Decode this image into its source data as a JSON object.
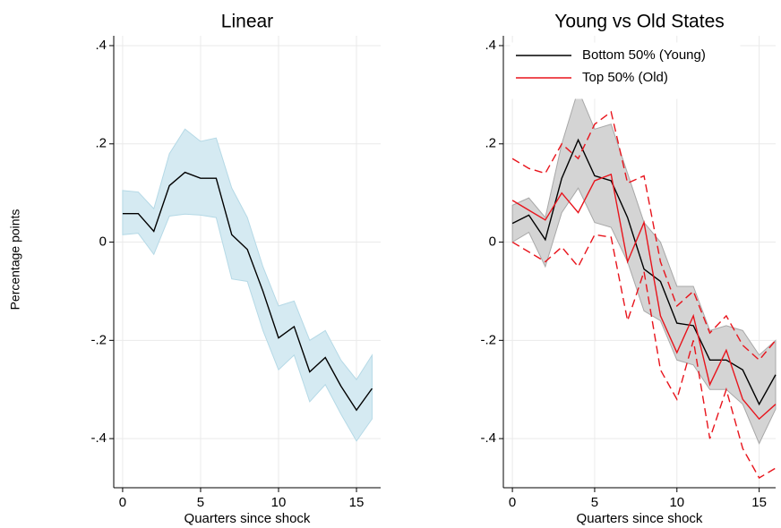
{
  "ylabel": "Percentage points",
  "chart_data": [
    {
      "type": "line",
      "title": "Linear",
      "xlabel": "Quarters since shock",
      "x": [
        0,
        1,
        2,
        3,
        4,
        5,
        6,
        7,
        8,
        9,
        10,
        11,
        12,
        13,
        14,
        15,
        16
      ],
      "xlim": [
        -0.57,
        16.55
      ],
      "ylim": [
        -0.5,
        0.42
      ],
      "xticks": [
        0,
        5,
        10,
        15
      ],
      "yticks": [
        {
          "value": 0.4,
          "label": ".4"
        },
        {
          "value": 0.2,
          "label": ".2"
        },
        0,
        {
          "value": -0.2,
          "label": "-.2"
        },
        {
          "value": -0.4,
          "label": "-.4"
        }
      ],
      "grid": true,
      "series": [
        {
          "color": "#000000",
          "band_color": "#d5eaf2",
          "band_edge": "#b5d9e6",
          "band_style": "fill",
          "values": [
            0.058,
            0.058,
            0.022,
            0.115,
            0.142,
            0.13,
            0.13,
            0.015,
            -0.015,
            -0.1,
            -0.195,
            -0.172,
            -0.264,
            -0.235,
            -0.293,
            -0.342,
            -0.298
          ],
          "upper": [
            0.105,
            0.102,
            0.068,
            0.18,
            0.23,
            0.205,
            0.212,
            0.11,
            0.05,
            -0.05,
            -0.13,
            -0.12,
            -0.2,
            -0.18,
            -0.24,
            -0.28,
            -0.23
          ],
          "lower": [
            0.015,
            0.018,
            -0.025,
            0.053,
            0.057,
            0.055,
            0.05,
            -0.075,
            -0.08,
            -0.18,
            -0.26,
            -0.23,
            -0.325,
            -0.29,
            -0.35,
            -0.405,
            -0.36
          ]
        }
      ]
    },
    {
      "type": "line",
      "title": "Young vs Old States",
      "xlabel": "Quarters since shock",
      "x": [
        0,
        1,
        2,
        3,
        4,
        5,
        6,
        7,
        8,
        9,
        10,
        11,
        12,
        13,
        14,
        15,
        16
      ],
      "xlim": [
        -0.55,
        16
      ],
      "ylim": [
        -0.5,
        0.42
      ],
      "xticks": [
        0,
        5,
        10,
        15
      ],
      "yticks": [
        {
          "value": 0.4,
          "label": ".4"
        },
        {
          "value": 0.2,
          "label": ".2"
        },
        0,
        {
          "value": -0.2,
          "label": "-.2"
        },
        {
          "value": -0.4,
          "label": "-.4"
        }
      ],
      "grid": true,
      "legend": "upper left",
      "series": [
        {
          "name": "Bottom 50% (Young)",
          "color": "#000000",
          "band_color": "#d4d4d4",
          "band_edge": "#a8a8a8",
          "band_style": "fill",
          "values": [
            0.038,
            0.055,
            0.005,
            0.13,
            0.208,
            0.135,
            0.125,
            0.05,
            -0.055,
            -0.08,
            -0.165,
            -0.17,
            -0.24,
            -0.24,
            -0.26,
            -0.33,
            -0.27
          ],
          "upper": [
            0.075,
            0.09,
            0.05,
            0.2,
            0.31,
            0.23,
            0.24,
            0.14,
            0.04,
            0.0,
            -0.09,
            -0.09,
            -0.18,
            -0.17,
            -0.18,
            -0.23,
            -0.2
          ],
          "lower": [
            0.0,
            0.02,
            -0.05,
            0.06,
            0.11,
            0.04,
            0.03,
            -0.04,
            -0.14,
            -0.16,
            -0.24,
            -0.25,
            -0.3,
            -0.3,
            -0.33,
            -0.41,
            -0.34
          ]
        },
        {
          "name": "Top 50% (Old)",
          "color": "#e8141c",
          "band_style": "dashed",
          "values": [
            0.085,
            0.065,
            0.045,
            0.1,
            0.06,
            0.125,
            0.138,
            -0.04,
            0.04,
            -0.15,
            -0.225,
            -0.15,
            -0.29,
            -0.22,
            -0.32,
            -0.36,
            -0.33
          ],
          "upper": [
            0.17,
            0.15,
            0.14,
            0.2,
            0.17,
            0.24,
            0.265,
            0.12,
            0.135,
            -0.04,
            -0.13,
            -0.1,
            -0.185,
            -0.15,
            -0.21,
            -0.24,
            -0.2
          ],
          "lower": [
            0.0,
            -0.02,
            -0.04,
            -0.01,
            -0.05,
            0.015,
            0.01,
            -0.16,
            -0.06,
            -0.26,
            -0.32,
            -0.2,
            -0.4,
            -0.3,
            -0.42,
            -0.48,
            -0.46
          ]
        }
      ]
    }
  ]
}
